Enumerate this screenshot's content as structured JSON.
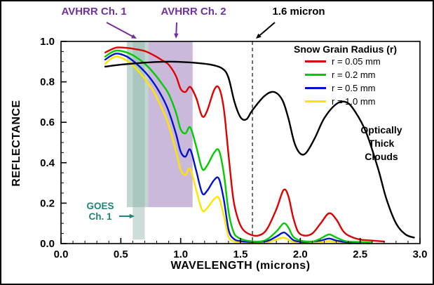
{
  "figure": {
    "annotations": {
      "avhrr1": "AVHRR Ch. 1",
      "avhrr2": "AVHRR Ch. 2",
      "micron": "1.6 micron",
      "goes_line1": "GOES",
      "goes_line2": "Ch. 1",
      "clouds_line1": "Optically",
      "clouds_line2": "Thick",
      "clouds_line3": "Clouds"
    },
    "colors": {
      "purple_label": "#7030a0",
      "goes_label": "#1e8476",
      "black_label": "#000000",
      "teal_band": "#8fb4ac",
      "purple_band": "#a98bc4",
      "dashed_line": "#333333"
    }
  },
  "chart_data": {
    "type": "line",
    "title": "",
    "xlabel": "WAVELENGTH (microns)",
    "ylabel": "REFLECTANCE",
    "xlim": [
      0.0,
      3.0
    ],
    "ylim": [
      0.0,
      1.0
    ],
    "xticks": [
      0.0,
      0.5,
      1.0,
      1.5,
      2.0,
      2.5,
      3.0
    ],
    "yticks": [
      0.0,
      0.2,
      0.4,
      0.6,
      0.8,
      1.0
    ],
    "grid": false,
    "legend": {
      "title": "Snow Grain Radius (r)",
      "position": "upper right inside",
      "entries": [
        {
          "label": "r = 0.05 mm",
          "color": "#e10000"
        },
        {
          "label": "r = 0.2 mm",
          "color": "#00cc00"
        },
        {
          "label": "r = 0.5 mm",
          "color": "#0013cc"
        },
        {
          "label": "r = 1.0 mm",
          "color": "#ffe400"
        }
      ]
    },
    "reference_line": {
      "x": 1.6,
      "style": "dashed",
      "label": "1.6 micron"
    },
    "bands": [
      {
        "name": "AVHRR Ch. 1",
        "x0": 0.55,
        "x1": 0.73,
        "y0": 0.18,
        "y1": 1.0,
        "color": "#8fb4ac",
        "opacity": 0.55
      },
      {
        "name": "GOES Ch. 1",
        "x0": 0.6,
        "x1": 0.7,
        "y0": 0.02,
        "y1": 1.0,
        "color": "#8fb4ac",
        "opacity": 0.45
      },
      {
        "name": "AVHRR Ch. 2",
        "x0": 0.73,
        "x1": 1.1,
        "y0": 0.18,
        "y1": 1.0,
        "color": "#a98bc4",
        "opacity": 0.6
      }
    ],
    "series": [
      {
        "name": "r = 1.0 mm",
        "color": "#ffe400",
        "points": [
          [
            0.37,
            0.89
          ],
          [
            0.42,
            0.915
          ],
          [
            0.47,
            0.925
          ],
          [
            0.55,
            0.905
          ],
          [
            0.62,
            0.87
          ],
          [
            0.7,
            0.815
          ],
          [
            0.78,
            0.745
          ],
          [
            0.85,
            0.66
          ],
          [
            0.9,
            0.585
          ],
          [
            0.96,
            0.46
          ],
          [
            1.0,
            0.365
          ],
          [
            1.04,
            0.34
          ],
          [
            1.08,
            0.37
          ],
          [
            1.13,
            0.265
          ],
          [
            1.18,
            0.165
          ],
          [
            1.22,
            0.175
          ],
          [
            1.28,
            0.22
          ],
          [
            1.32,
            0.225
          ],
          [
            1.36,
            0.14
          ],
          [
            1.4,
            0.035
          ],
          [
            1.44,
            0.012
          ],
          [
            1.5,
            0.006
          ],
          [
            1.6,
            0.004
          ],
          [
            1.72,
            0.006
          ],
          [
            1.8,
            0.02
          ],
          [
            1.86,
            0.03
          ],
          [
            1.9,
            0.02
          ],
          [
            1.95,
            0.008
          ],
          [
            2.1,
            0.004
          ],
          [
            2.18,
            0.008
          ],
          [
            2.24,
            0.012
          ],
          [
            2.3,
            0.008
          ],
          [
            2.4,
            0.003
          ],
          [
            2.5,
            0.002
          ]
        ]
      },
      {
        "name": "r = 0.5 mm",
        "color": "#0013cc",
        "points": [
          [
            0.37,
            0.91
          ],
          [
            0.42,
            0.93
          ],
          [
            0.47,
            0.94
          ],
          [
            0.55,
            0.925
          ],
          [
            0.62,
            0.895
          ],
          [
            0.7,
            0.85
          ],
          [
            0.78,
            0.79
          ],
          [
            0.85,
            0.72
          ],
          [
            0.9,
            0.655
          ],
          [
            0.96,
            0.545
          ],
          [
            1.0,
            0.455
          ],
          [
            1.04,
            0.43
          ],
          [
            1.08,
            0.465
          ],
          [
            1.13,
            0.36
          ],
          [
            1.18,
            0.25
          ],
          [
            1.22,
            0.26
          ],
          [
            1.28,
            0.315
          ],
          [
            1.32,
            0.32
          ],
          [
            1.36,
            0.22
          ],
          [
            1.4,
            0.07
          ],
          [
            1.44,
            0.025
          ],
          [
            1.5,
            0.012
          ],
          [
            1.6,
            0.008
          ],
          [
            1.72,
            0.012
          ],
          [
            1.8,
            0.035
          ],
          [
            1.86,
            0.055
          ],
          [
            1.9,
            0.04
          ],
          [
            1.95,
            0.015
          ],
          [
            2.05,
            0.008
          ],
          [
            2.17,
            0.015
          ],
          [
            2.24,
            0.025
          ],
          [
            2.3,
            0.015
          ],
          [
            2.4,
            0.006
          ],
          [
            2.5,
            0.004
          ]
        ]
      },
      {
        "name": "r = 0.2 mm",
        "color": "#00cc00",
        "points": [
          [
            0.37,
            0.925
          ],
          [
            0.42,
            0.945
          ],
          [
            0.47,
            0.955
          ],
          [
            0.55,
            0.945
          ],
          [
            0.62,
            0.925
          ],
          [
            0.7,
            0.89
          ],
          [
            0.78,
            0.84
          ],
          [
            0.85,
            0.785
          ],
          [
            0.9,
            0.74
          ],
          [
            0.96,
            0.65
          ],
          [
            1.0,
            0.565
          ],
          [
            1.04,
            0.545
          ],
          [
            1.08,
            0.575
          ],
          [
            1.13,
            0.48
          ],
          [
            1.18,
            0.37
          ],
          [
            1.22,
            0.385
          ],
          [
            1.28,
            0.45
          ],
          [
            1.32,
            0.46
          ],
          [
            1.36,
            0.35
          ],
          [
            1.4,
            0.16
          ],
          [
            1.44,
            0.06
          ],
          [
            1.48,
            0.03
          ],
          [
            1.55,
            0.015
          ],
          [
            1.65,
            0.01
          ],
          [
            1.72,
            0.02
          ],
          [
            1.8,
            0.06
          ],
          [
            1.86,
            0.1
          ],
          [
            1.9,
            0.08
          ],
          [
            1.94,
            0.035
          ],
          [
            2.0,
            0.015
          ],
          [
            2.1,
            0.01
          ],
          [
            2.17,
            0.025
          ],
          [
            2.24,
            0.045
          ],
          [
            2.3,
            0.03
          ],
          [
            2.38,
            0.012
          ],
          [
            2.5,
            0.008
          ],
          [
            2.6,
            0.005
          ]
        ]
      },
      {
        "name": "r = 0.05 mm",
        "color": "#e10000",
        "points": [
          [
            0.37,
            0.945
          ],
          [
            0.42,
            0.96
          ],
          [
            0.47,
            0.97
          ],
          [
            0.55,
            0.968
          ],
          [
            0.62,
            0.962
          ],
          [
            0.7,
            0.952
          ],
          [
            0.78,
            0.93
          ],
          [
            0.85,
            0.905
          ],
          [
            0.9,
            0.885
          ],
          [
            0.96,
            0.83
          ],
          [
            1.0,
            0.765
          ],
          [
            1.04,
            0.75
          ],
          [
            1.08,
            0.775
          ],
          [
            1.13,
            0.72
          ],
          [
            1.18,
            0.63
          ],
          [
            1.22,
            0.655
          ],
          [
            1.28,
            0.76
          ],
          [
            1.32,
            0.77
          ],
          [
            1.36,
            0.67
          ],
          [
            1.4,
            0.44
          ],
          [
            1.44,
            0.22
          ],
          [
            1.48,
            0.12
          ],
          [
            1.52,
            0.07
          ],
          [
            1.58,
            0.045
          ],
          [
            1.65,
            0.04
          ],
          [
            1.72,
            0.07
          ],
          [
            1.8,
            0.17
          ],
          [
            1.86,
            0.265
          ],
          [
            1.9,
            0.235
          ],
          [
            1.94,
            0.13
          ],
          [
            1.98,
            0.06
          ],
          [
            2.03,
            0.04
          ],
          [
            2.1,
            0.05
          ],
          [
            2.17,
            0.1
          ],
          [
            2.24,
            0.15
          ],
          [
            2.3,
            0.12
          ],
          [
            2.36,
            0.06
          ],
          [
            2.42,
            0.035
          ],
          [
            2.5,
            0.02
          ],
          [
            2.6,
            0.015
          ],
          [
            2.7,
            0.01
          ]
        ]
      },
      {
        "name": "Optically Thick Clouds",
        "color": "#000000",
        "points": [
          [
            0.37,
            0.875
          ],
          [
            0.5,
            0.885
          ],
          [
            0.7,
            0.895
          ],
          [
            0.9,
            0.9
          ],
          [
            1.1,
            0.895
          ],
          [
            1.25,
            0.885
          ],
          [
            1.35,
            0.865
          ],
          [
            1.4,
            0.82
          ],
          [
            1.45,
            0.7
          ],
          [
            1.5,
            0.625
          ],
          [
            1.55,
            0.615
          ],
          [
            1.6,
            0.66
          ],
          [
            1.7,
            0.73
          ],
          [
            1.78,
            0.75
          ],
          [
            1.85,
            0.71
          ],
          [
            1.9,
            0.62
          ],
          [
            1.95,
            0.5
          ],
          [
            2.0,
            0.445
          ],
          [
            2.05,
            0.45
          ],
          [
            2.12,
            0.52
          ],
          [
            2.2,
            0.62
          ],
          [
            2.3,
            0.69
          ],
          [
            2.38,
            0.7
          ],
          [
            2.45,
            0.66
          ],
          [
            2.55,
            0.55
          ],
          [
            2.65,
            0.37
          ],
          [
            2.72,
            0.22
          ],
          [
            2.8,
            0.1
          ],
          [
            2.88,
            0.045
          ],
          [
            2.95,
            0.03
          ]
        ]
      }
    ]
  }
}
